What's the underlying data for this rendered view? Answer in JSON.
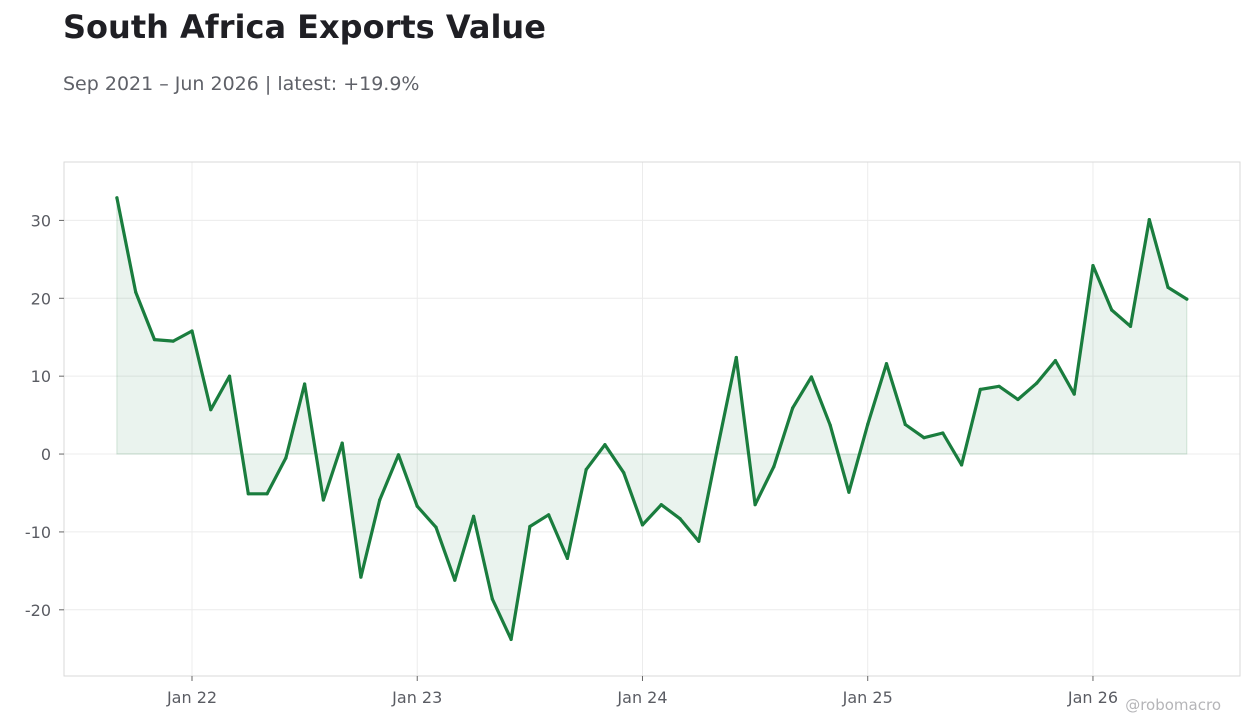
{
  "title": "South Africa Exports Value",
  "subtitle": "Sep 2021 – Jun 2026 | latest: +19.9%",
  "watermark": "@robomacro",
  "colors": {
    "line": "#1a7d3e",
    "fill": "#1a7d3e",
    "grid": "#ececec",
    "frame": "#d9d9d9"
  },
  "chart_data": {
    "type": "area",
    "title": "South Africa Exports Value",
    "subtitle": "Sep 2021 – Jun 2026 | latest: +19.9%",
    "xlabel": "",
    "ylabel": "",
    "x_start": "2021-09",
    "x_end": "2026-06",
    "ylim": [
      -28.5,
      37.5
    ],
    "y_ticks": [
      30,
      20,
      10,
      0,
      -10,
      -20
    ],
    "y_tick_labels": [
      "30",
      "20",
      "10",
      "0",
      "-10",
      "-20"
    ],
    "x_ticks": [
      "2022-01",
      "2023-01",
      "2024-01",
      "2025-01",
      "2026-01"
    ],
    "x_tick_labels": [
      "Jan 22",
      "Jan 23",
      "Jan 24",
      "Jan 25",
      "Jan 26"
    ],
    "grid": true,
    "series": [
      {
        "x": [
          "2021-09",
          "2021-10",
          "2021-11",
          "2021-12",
          "2022-01",
          "2022-02",
          "2022-03",
          "2022-04",
          "2022-05",
          "2022-06",
          "2022-07",
          "2022-08",
          "2022-09",
          "2022-10",
          "2022-11",
          "2022-12",
          "2023-01",
          "2023-02",
          "2023-03",
          "2023-04",
          "2023-05",
          "2023-06",
          "2023-07",
          "2023-08",
          "2023-09",
          "2023-10",
          "2023-11",
          "2023-12",
          "2024-01",
          "2024-02",
          "2024-03",
          "2024-04",
          "2024-05",
          "2024-06",
          "2024-07",
          "2024-08",
          "2024-09",
          "2024-10",
          "2024-11",
          "2024-12",
          "2025-01",
          "2025-02",
          "2025-03",
          "2025-04",
          "2025-05",
          "2025-06",
          "2025-07",
          "2025-08",
          "2025-09",
          "2025-10",
          "2025-11",
          "2025-12",
          "2026-01",
          "2026-02",
          "2026-03",
          "2026-04",
          "2026-05",
          "2026-06"
        ],
        "values": [
          32.9,
          20.8,
          14.7,
          14.5,
          15.8,
          5.7,
          10.0,
          -5.1,
          -5.1,
          -0.5,
          9.0,
          -5.9,
          1.4,
          -15.8,
          -5.9,
          -0.1,
          -6.7,
          -9.4,
          -16.2,
          -8.0,
          -18.6,
          -23.8,
          -9.3,
          -7.8,
          -13.4,
          -2.0,
          1.2,
          -2.4,
          -9.1,
          -6.5,
          -8.3,
          -11.2,
          0.8,
          12.4,
          -6.5,
          -1.6,
          5.9,
          9.9,
          3.7,
          -4.9,
          3.8,
          11.6,
          3.8,
          2.1,
          2.7,
          -1.4,
          8.3,
          8.7,
          7.0,
          9.1,
          12.0,
          7.7,
          24.2,
          18.5,
          16.4,
          30.1,
          21.4,
          19.9
        ]
      }
    ]
  }
}
